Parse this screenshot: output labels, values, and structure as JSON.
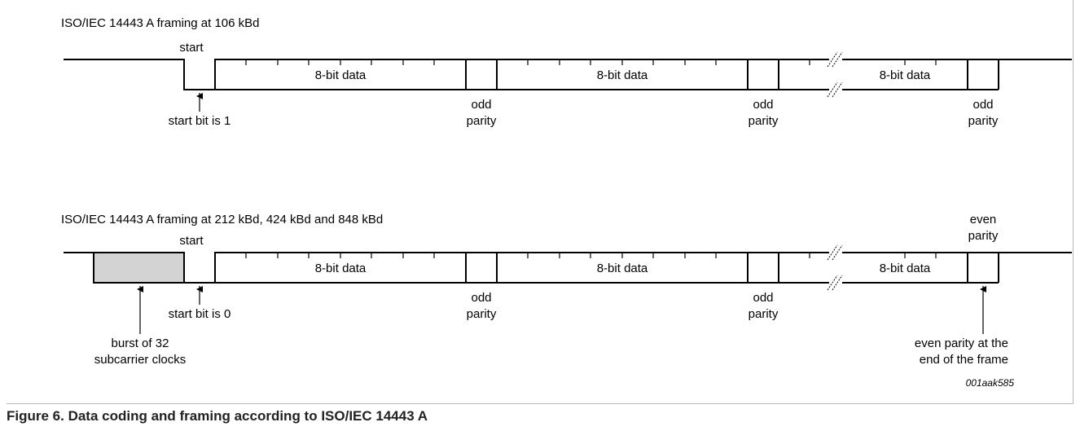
{
  "frames": [
    {
      "title": "ISO/IEC 14443 A framing at 106 kBd",
      "start_label": "start",
      "bytes": [
        {
          "data_label": "8-bit data",
          "parity_line1": "odd",
          "parity_line2": "parity"
        },
        {
          "data_label": "8-bit data",
          "parity_line1": "odd",
          "parity_line2": "parity"
        },
        {
          "data_label": "8-bit data",
          "parity_line1": "odd",
          "parity_line2": "parity"
        }
      ],
      "start_bit_note": "start bit is 1"
    },
    {
      "title": "ISO/IEC 14443 A framing at 212 kBd, 424 kBd and 848 kBd",
      "start_label": "start",
      "bytes": [
        {
          "data_label": "8-bit data",
          "parity_line1": "odd",
          "parity_line2": "parity"
        },
        {
          "data_label": "8-bit data",
          "parity_line1": "odd",
          "parity_line2": "parity"
        },
        {
          "data_label": "8-bit data"
        }
      ],
      "final_parity_line1": "even",
      "final_parity_line2": "parity",
      "start_bit_note": "start bit is 0",
      "burst_line1": "burst of 32",
      "burst_line2": "subcarrier clocks",
      "end_note_line1": "even parity at the",
      "end_note_line2": "end of the frame"
    }
  ],
  "figure_tag": "001aak585",
  "caption": "Figure 6.  Data coding and framing according to ISO/IEC 14443 A",
  "colors": {
    "burst_fill": "#d3d3d3",
    "line": "#000000",
    "frame_border": "#b9b9b9"
  }
}
